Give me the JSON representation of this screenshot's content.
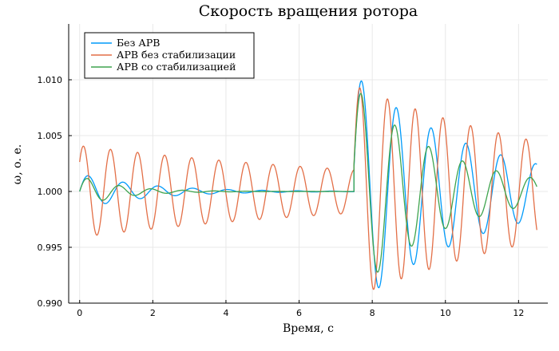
{
  "chart_data": {
    "type": "line",
    "title": "Скорость вращения ротора",
    "xlabel": "Время, с",
    "ylabel": "ω, о. е.",
    "xlim": [
      -0.3,
      12.8
    ],
    "ylim": [
      0.99,
      1.015
    ],
    "xticks": [
      0,
      2,
      4,
      6,
      8,
      10,
      12
    ],
    "xtick_labels": [
      "0",
      "2",
      "4",
      "6",
      "8",
      "10",
      "12"
    ],
    "yticks": [
      0.99,
      0.995,
      1.0,
      1.005,
      1.01
    ],
    "ytick_labels": [
      "0.990",
      "0.995",
      "1.000",
      "1.005",
      "1.010"
    ],
    "grid": true,
    "legend_position": "top-left",
    "colors": {
      "Без АРВ": "#009AFA",
      "АРВ без стабилизации": "#E36F47",
      "АРВ со стабилизацией": "#3EA44E"
    },
    "series": [
      {
        "name": "Без АРВ",
        "phases": [
          {
            "t_start": 0.0,
            "t_end": 7.5,
            "base": 1.0,
            "amp": 0.0016,
            "freq_hz": 1.05,
            "decay": 0.55,
            "phase_offset": 0.0
          },
          {
            "t_start": 7.5,
            "t_end": 12.5,
            "base": 1.0,
            "amp": 0.0105,
            "freq_hz": 1.05,
            "decay": 0.29,
            "phase_offset": 0.2
          }
        ]
      },
      {
        "name": "АРВ без стабилизации",
        "phases": [
          {
            "t_start": 0.0,
            "t_end": 7.5,
            "base": 1.0,
            "amp": 0.0041,
            "freq_hz": 1.35,
            "decay": 0.1,
            "phase_offset": 0.7
          },
          {
            "t_start": 7.5,
            "t_end": 12.5,
            "base": 1.0,
            "amp": 0.0095,
            "freq_hz": 1.32,
            "decay": 0.15,
            "phase_offset": 0.25
          }
        ]
      },
      {
        "name": "АРВ со стабилизацией",
        "phases": [
          {
            "t_start": 0.0,
            "t_end": 7.5,
            "base": 1.0,
            "amp": 0.0014,
            "freq_hz": 1.15,
            "decay": 0.9,
            "phase_offset": 0.0
          },
          {
            "t_start": 7.5,
            "t_end": 12.5,
            "base": 1.0,
            "amp": 0.0095,
            "freq_hz": 1.08,
            "decay": 0.42,
            "phase_offset": 0.25
          }
        ]
      }
    ]
  }
}
